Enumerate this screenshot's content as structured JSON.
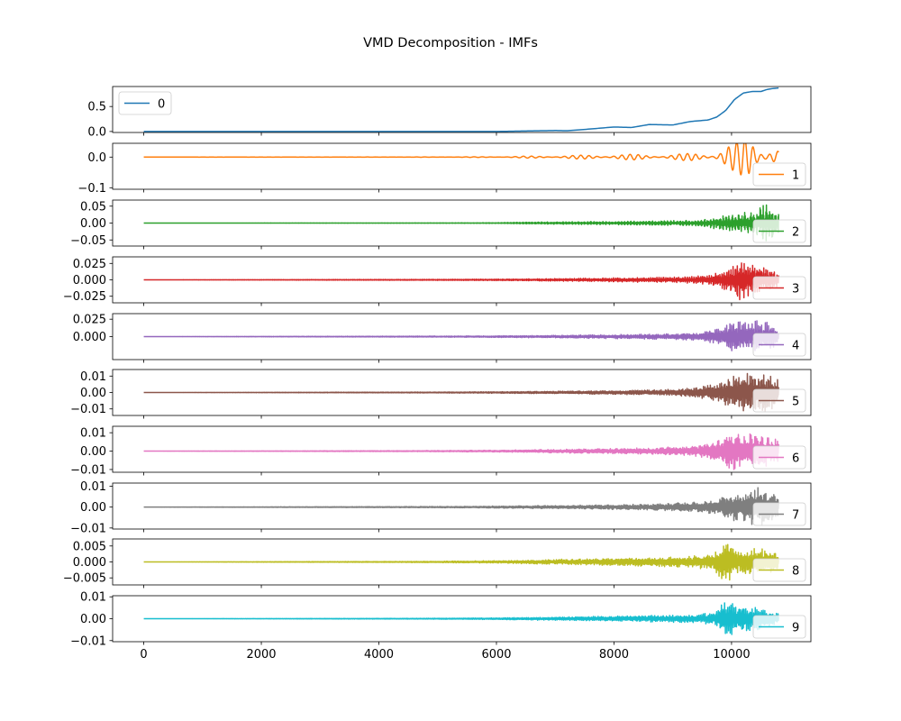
{
  "chart_data": {
    "type": "line",
    "title": "VMD Decomposition - IMFs",
    "xlabel": "",
    "ylabel": "",
    "x_range": [
      0,
      10800
    ],
    "xlim": [
      -530,
      11350
    ],
    "x_ticks": [
      0,
      2000,
      4000,
      6000,
      8000,
      10000
    ],
    "x_tick_labels": [
      "0",
      "2000",
      "4000",
      "6000",
      "8000",
      "10000"
    ],
    "grid": false,
    "legend_position": "left for IMF 0, right for IMFs 1-9",
    "panels": [
      {
        "name": "0",
        "color": "#1f77b4",
        "ylim": [
          -0.02,
          0.9
        ],
        "y_ticks": [
          0.0,
          0.5
        ],
        "y_tick_labels": [
          "0.0",
          "0.5"
        ],
        "legend_side": "left",
        "trend": {
          "x": [
            0,
            6000,
            6500,
            7000,
            7200,
            7600,
            8000,
            8300,
            8600,
            9000,
            9300,
            9600,
            9750,
            9900,
            10050,
            10200,
            10350,
            10500,
            10600,
            10700,
            10800
          ],
          "y": [
            0.0,
            0.0,
            0.01,
            0.02,
            0.015,
            0.05,
            0.09,
            0.08,
            0.14,
            0.13,
            0.2,
            0.23,
            0.29,
            0.42,
            0.64,
            0.77,
            0.8,
            0.8,
            0.84,
            0.86,
            0.87
          ]
        }
      },
      {
        "name": "1",
        "color": "#ff7f0e",
        "ylim": [
          -0.105,
          0.045
        ],
        "y_ticks": [
          0.0,
          -0.1
        ],
        "y_tick_labels": [
          "0.0",
          "−0.1"
        ],
        "legend_side": "right",
        "envelope": {
          "x": [
            0,
            4800,
            5600,
            6200,
            6800,
            7400,
            8000,
            8400,
            8800,
            9200,
            9500,
            9700,
            9900,
            10100,
            10300,
            10500,
            10650,
            10800
          ],
          "amplitude": [
            0.0,
            0.0005,
            0.001,
            0.002,
            0.004,
            0.006,
            0.009,
            0.009,
            0.008,
            0.011,
            0.015,
            0.02,
            0.04,
            0.05,
            0.085,
            0.07,
            0.045,
            0.03
          ]
        }
      },
      {
        "name": "2",
        "color": "#2ca02c",
        "ylim": [
          -0.068,
          0.068
        ],
        "y_ticks": [
          0.05,
          0.0,
          -0.05
        ],
        "y_tick_labels": [
          "0.05",
          "0.00",
          "−0.05"
        ],
        "legend_side": "right",
        "envelope": {
          "x": [
            0,
            5000,
            6000,
            6600,
            7200,
            8000,
            8600,
            9200,
            9500,
            9800,
            10100,
            10400,
            10550,
            10700,
            10800
          ],
          "amplitude": [
            0.0,
            0.0005,
            0.001,
            0.003,
            0.004,
            0.005,
            0.007,
            0.008,
            0.01,
            0.02,
            0.03,
            0.035,
            0.06,
            0.05,
            0.03
          ]
        }
      },
      {
        "name": "3",
        "color": "#d62728",
        "ylim": [
          -0.035,
          0.035
        ],
        "y_ticks": [
          0.025,
          0.0,
          -0.025
        ],
        "y_tick_labels": [
          "0.025",
          "0.000",
          "−0.025"
        ],
        "legend_side": "right",
        "envelope": {
          "x": [
            0,
            4800,
            6000,
            7000,
            7800,
            8600,
            9200,
            9600,
            9800,
            10000,
            10150,
            10300,
            10500,
            10650,
            10800
          ],
          "amplitude": [
            0.0,
            0.0008,
            0.0012,
            0.002,
            0.003,
            0.004,
            0.005,
            0.007,
            0.012,
            0.02,
            0.033,
            0.025,
            0.024,
            0.018,
            0.01
          ]
        }
      },
      {
        "name": "4",
        "color": "#9467bd",
        "ylim": [
          -0.033,
          0.033
        ],
        "y_ticks": [
          0.025,
          0.0
        ],
        "y_tick_labels": [
          "0.025",
          "0.000"
        ],
        "legend_side": "right",
        "envelope": {
          "x": [
            0,
            4800,
            6000,
            7000,
            8000,
            8800,
            9400,
            9700,
            9900,
            10050,
            10250,
            10450,
            10650,
            10800
          ],
          "amplitude": [
            0.0,
            0.0008,
            0.0012,
            0.002,
            0.003,
            0.004,
            0.006,
            0.01,
            0.016,
            0.026,
            0.02,
            0.024,
            0.02,
            0.012
          ]
        }
      },
      {
        "name": "5",
        "color": "#8c564b",
        "ylim": [
          -0.014,
          0.014
        ],
        "y_ticks": [
          0.01,
          0.0,
          -0.01
        ],
        "y_tick_labels": [
          "0.01",
          "0.00",
          "−0.01"
        ],
        "legend_side": "right",
        "envelope": {
          "x": [
            0,
            4800,
            6000,
            7000,
            8000,
            8800,
            9400,
            9800,
            10000,
            10200,
            10400,
            10600,
            10800
          ],
          "amplitude": [
            0.0,
            0.0003,
            0.0005,
            0.0008,
            0.0012,
            0.0018,
            0.003,
            0.006,
            0.01,
            0.013,
            0.011,
            0.012,
            0.008
          ]
        }
      },
      {
        "name": "6",
        "color": "#e377c2",
        "ylim": [
          -0.0115,
          0.0135
        ],
        "y_ticks": [
          0.01,
          0.0,
          -0.01
        ],
        "y_tick_labels": [
          "0.01",
          "0.00",
          "−0.01"
        ],
        "legend_side": "right",
        "envelope": {
          "x": [
            0,
            4800,
            6000,
            7000,
            8000,
            8800,
            9400,
            9800,
            10000,
            10200,
            10400,
            10600,
            10800
          ],
          "amplitude": [
            0.0,
            0.0003,
            0.0005,
            0.001,
            0.0015,
            0.002,
            0.003,
            0.006,
            0.011,
            0.009,
            0.01,
            0.009,
            0.006
          ]
        }
      },
      {
        "name": "7",
        "color": "#7f7f7f",
        "ylim": [
          -0.0105,
          0.0115
        ],
        "y_ticks": [
          0.01,
          0.0,
          -0.01
        ],
        "y_tick_labels": [
          "0.01",
          "0.00",
          "−0.01"
        ],
        "legend_side": "right",
        "envelope": {
          "x": [
            0,
            4800,
            6000,
            7000,
            8000,
            8800,
            9400,
            9800,
            10000,
            10200,
            10400,
            10550,
            10800
          ],
          "amplitude": [
            0.0,
            0.0003,
            0.0005,
            0.0008,
            0.0012,
            0.0016,
            0.0025,
            0.004,
            0.007,
            0.007,
            0.01,
            0.009,
            0.005
          ]
        }
      },
      {
        "name": "8",
        "color": "#bcbd22",
        "ylim": [
          -0.0072,
          0.0072
        ],
        "y_ticks": [
          0.005,
          0.0,
          -0.005
        ],
        "y_tick_labels": [
          "0.005",
          "0.000",
          "−0.005"
        ],
        "legend_side": "right",
        "envelope": {
          "x": [
            0,
            4800,
            6000,
            7000,
            8000,
            8800,
            9400,
            9700,
            9900,
            10100,
            10300,
            10500,
            10650,
            10800
          ],
          "amplitude": [
            0.0,
            0.0002,
            0.0004,
            0.0008,
            0.0012,
            0.0015,
            0.002,
            0.0028,
            0.0068,
            0.0035,
            0.004,
            0.0045,
            0.004,
            0.0025
          ]
        }
      },
      {
        "name": "9",
        "color": "#17becf",
        "ylim": [
          -0.0105,
          0.0105
        ],
        "y_ticks": [
          0.01,
          0.0,
          -0.01
        ],
        "y_tick_labels": [
          "0.01",
          "0.00",
          "−0.01"
        ],
        "legend_side": "right",
        "envelope": {
          "x": [
            0,
            4800,
            6000,
            7000,
            8000,
            8800,
            9400,
            9700,
            9900,
            10100,
            10300,
            10500,
            10650,
            10800
          ],
          "amplitude": [
            0.0,
            0.0002,
            0.0004,
            0.0008,
            0.0012,
            0.0016,
            0.002,
            0.003,
            0.0095,
            0.006,
            0.006,
            0.005,
            0.004,
            0.0025
          ]
        }
      }
    ]
  }
}
